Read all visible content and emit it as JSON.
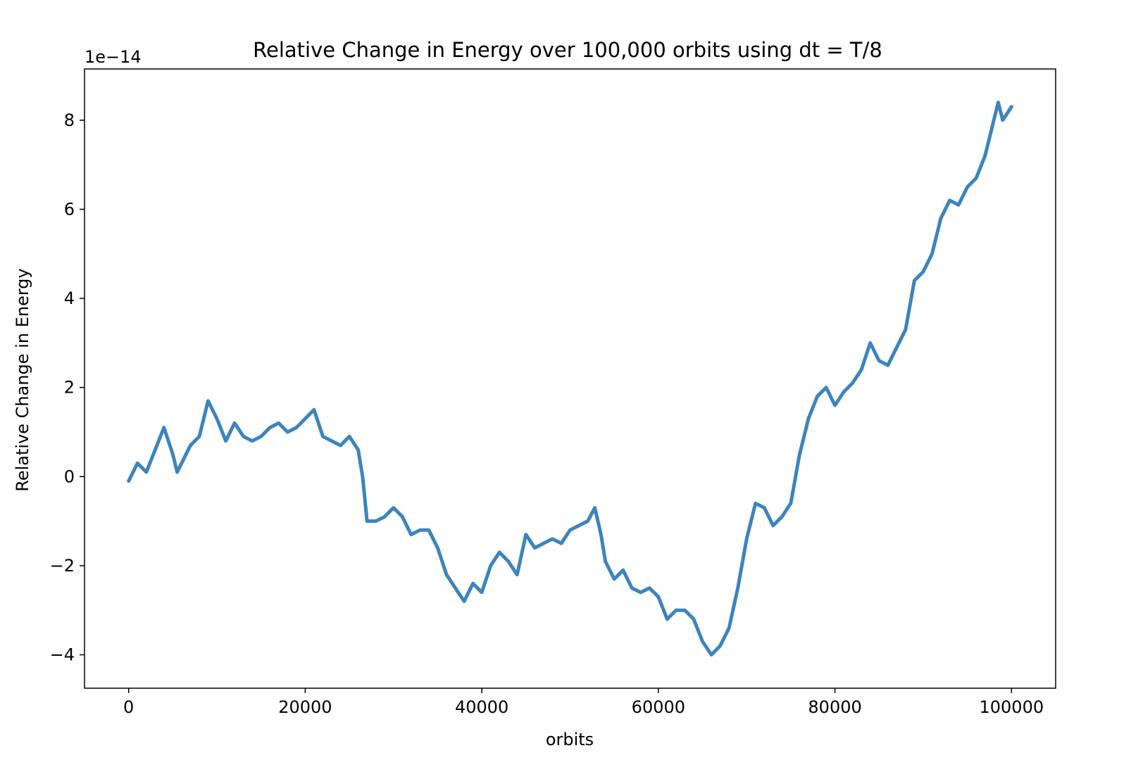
{
  "chart_data": {
    "type": "line",
    "title": "Relative Change in Energy over 100,000 orbits using dt = T/8",
    "xlabel": "orbits",
    "ylabel": "Relative Change in Energy",
    "y_offset_label": "1e−14",
    "y_scale_factor": 1e-14,
    "xlim": [
      -5000,
      105000
    ],
    "ylim": [
      -4.75,
      9.15
    ],
    "x_ticks": [
      0,
      20000,
      40000,
      60000,
      80000,
      100000
    ],
    "x_tick_labels": [
      "0",
      "20000",
      "40000",
      "60000",
      "80000",
      "100000"
    ],
    "y_ticks": [
      -4,
      -2,
      0,
      2,
      4,
      6,
      8
    ],
    "y_tick_labels": [
      "−4",
      "−2",
      "0",
      "2",
      "4",
      "6",
      "8"
    ],
    "grid": false,
    "line_color": "#3c84bd",
    "series": [
      {
        "x": [
          0,
          1000,
          2000,
          3000,
          4000,
          5000,
          5500,
          7000,
          8000,
          9000,
          10000,
          11000,
          12000,
          13000,
          14000,
          15000,
          16000,
          17000,
          18000,
          19000,
          20000,
          21000,
          22000,
          23000,
          24000,
          25000,
          26000,
          26500,
          27000,
          28000,
          29000,
          30000,
          31000,
          32000,
          33000,
          34000,
          35000,
          36000,
          37000,
          38000,
          39000,
          40000,
          41000,
          42000,
          43000,
          44000,
          45000,
          46000,
          47000,
          48000,
          49000,
          50000,
          51000,
          52000,
          52800,
          53500,
          54000,
          55000,
          56000,
          57000,
          58000,
          59000,
          60000,
          61000,
          62000,
          63000,
          64000,
          65000,
          66000,
          67000,
          68000,
          69000,
          70000,
          71000,
          72000,
          73000,
          74000,
          75000,
          76000,
          77000,
          78000,
          79000,
          80000,
          81000,
          82000,
          83000,
          84000,
          85000,
          86000,
          87000,
          88000,
          89000,
          90000,
          91000,
          92000,
          93000,
          94000,
          95000,
          96000,
          97000,
          98000,
          98500,
          99000,
          100000
        ],
        "y": [
          -0.1,
          0.3,
          0.1,
          0.6,
          1.1,
          0.5,
          0.1,
          0.7,
          0.9,
          1.7,
          1.3,
          0.8,
          1.2,
          0.9,
          0.8,
          0.9,
          1.1,
          1.2,
          1.0,
          1.1,
          1.3,
          1.5,
          0.9,
          0.8,
          0.7,
          0.9,
          0.6,
          0.0,
          -1.0,
          -1.0,
          -0.9,
          -0.7,
          -0.9,
          -1.3,
          -1.2,
          -1.2,
          -1.6,
          -2.2,
          -2.5,
          -2.8,
          -2.4,
          -2.6,
          -2.0,
          -1.7,
          -1.9,
          -2.2,
          -1.3,
          -1.6,
          -1.5,
          -1.4,
          -1.5,
          -1.2,
          -1.1,
          -1.0,
          -0.7,
          -1.3,
          -1.9,
          -2.3,
          -2.1,
          -2.5,
          -2.6,
          -2.5,
          -2.7,
          -3.2,
          -3.0,
          -3.0,
          -3.2,
          -3.7,
          -4.0,
          -3.8,
          -3.4,
          -2.5,
          -1.4,
          -0.6,
          -0.7,
          -1.1,
          -0.9,
          -0.6,
          0.5,
          1.3,
          1.8,
          2.0,
          1.6,
          1.9,
          2.1,
          2.4,
          3.0,
          2.6,
          2.5,
          2.9,
          3.3,
          4.4,
          4.6,
          5.0,
          5.8,
          6.2,
          6.1,
          6.5,
          6.7,
          7.2,
          8.0,
          8.4,
          8.0,
          8.3
        ]
      }
    ]
  }
}
